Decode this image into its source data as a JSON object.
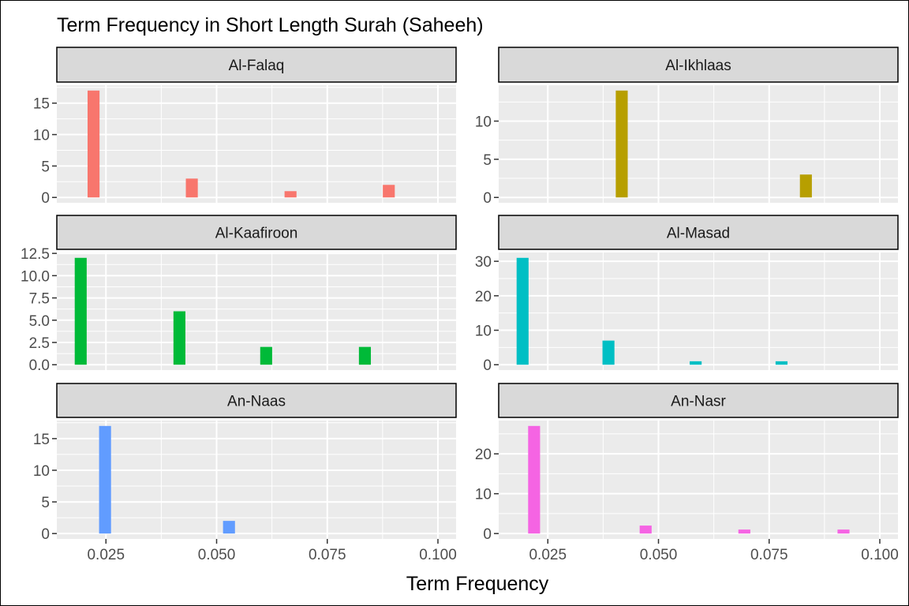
{
  "chart_data": {
    "type": "bar",
    "title": "Term Frequency in Short Length Surah (Saheeh)",
    "xlabel": "Term Frequency",
    "ylabel": "",
    "xlim": [
      0.0139,
      0.1041
    ],
    "x_breaks": [
      0.025,
      0.05,
      0.075,
      0.1
    ],
    "x_tick_labels": [
      "0.025",
      "0.050",
      "0.075",
      "0.100"
    ],
    "binwidth": 0.0027,
    "grid": true,
    "legend": "none",
    "facets": [
      {
        "name": "Al-Falaq",
        "color": "#F8766D",
        "x": [
          0.0222,
          0.0444,
          0.0667,
          0.0889
        ],
        "counts": [
          17,
          3,
          1,
          2
        ],
        "ylim": [
          0,
          17
        ],
        "y_breaks": [
          0,
          5,
          10,
          15
        ],
        "y_tick_labels": [
          "0",
          "5",
          "10",
          "15"
        ]
      },
      {
        "name": "Al-Ikhlaas",
        "color": "#B79F00",
        "x": [
          0.0417,
          0.0833
        ],
        "counts": [
          14,
          3
        ],
        "ylim": [
          0,
          14
        ],
        "y_breaks": [
          0,
          5,
          10
        ],
        "y_tick_labels": [
          "0",
          "5",
          "10"
        ]
      },
      {
        "name": "Al-Kaafiroon",
        "color": "#00BA38",
        "x": [
          0.0193,
          0.0416,
          0.0612,
          0.0835
        ],
        "counts": [
          12,
          6,
          2,
          2
        ],
        "ylim": [
          0,
          12
        ],
        "y_breaks": [
          0,
          2.5,
          5,
          7.5,
          10,
          12.5
        ],
        "y_tick_labels": [
          "0.0",
          "2.5",
          "5.0",
          "7.5",
          "10.0",
          "12.5"
        ]
      },
      {
        "name": "Al-Masad",
        "color": "#00BFC4",
        "x": [
          0.0193,
          0.0387,
          0.0584,
          0.0778
        ],
        "counts": [
          31,
          7,
          1,
          1
        ],
        "ylim": [
          0,
          31
        ],
        "y_breaks": [
          0,
          10,
          20,
          30
        ],
        "y_tick_labels": [
          "0",
          "10",
          "20",
          "30"
        ]
      },
      {
        "name": "An-Naas",
        "color": "#619CFF",
        "x": [
          0.0248,
          0.0528
        ],
        "counts": [
          17,
          2
        ],
        "ylim": [
          0,
          17
        ],
        "y_breaks": [
          0,
          5,
          10,
          15
        ],
        "y_tick_labels": [
          "0",
          "5",
          "10",
          "15"
        ]
      },
      {
        "name": "An-Nasr",
        "color": "#F564E3",
        "x": [
          0.0219,
          0.0471,
          0.0694,
          0.0918
        ],
        "counts": [
          27,
          2,
          1,
          1
        ],
        "ylim": [
          0,
          27
        ],
        "y_breaks": [
          0,
          10,
          20
        ],
        "y_tick_labels": [
          "0",
          "10",
          "20"
        ]
      }
    ]
  }
}
